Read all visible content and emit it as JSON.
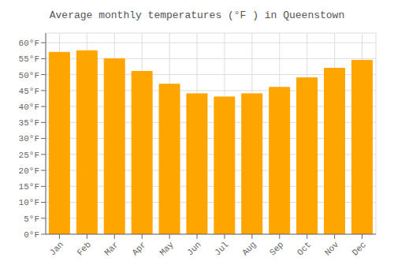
{
  "chart_data": {
    "type": "bar",
    "title": "Average monthly temperatures (°F ) in Queenstown",
    "categories": [
      "Jan",
      "Feb",
      "Mar",
      "Apr",
      "May",
      "Jun",
      "Jul",
      "Aug",
      "Sep",
      "Oct",
      "Nov",
      "Dec"
    ],
    "values": [
      57,
      57.5,
      55,
      51,
      47,
      44,
      43,
      44,
      46,
      49,
      52,
      54.5
    ],
    "color": "#FFA500",
    "ylim": [
      0,
      63
    ],
    "yticks": [
      {
        "value": 0,
        "label": "0°F"
      },
      {
        "value": 5,
        "label": "5°F"
      },
      {
        "value": 10,
        "label": "10°F"
      },
      {
        "value": 15,
        "label": "15°F"
      },
      {
        "value": 20,
        "label": "20°F"
      },
      {
        "value": 25,
        "label": "25°F"
      },
      {
        "value": 30,
        "label": "30°F"
      },
      {
        "value": 35,
        "label": "35°F"
      },
      {
        "value": 40,
        "label": "40°F"
      },
      {
        "value": 45,
        "label": "45°F"
      },
      {
        "value": 50,
        "label": "50°F"
      },
      {
        "value": 55,
        "label": "55°F"
      },
      {
        "value": 60,
        "label": "60°F"
      }
    ],
    "grid": true
  }
}
